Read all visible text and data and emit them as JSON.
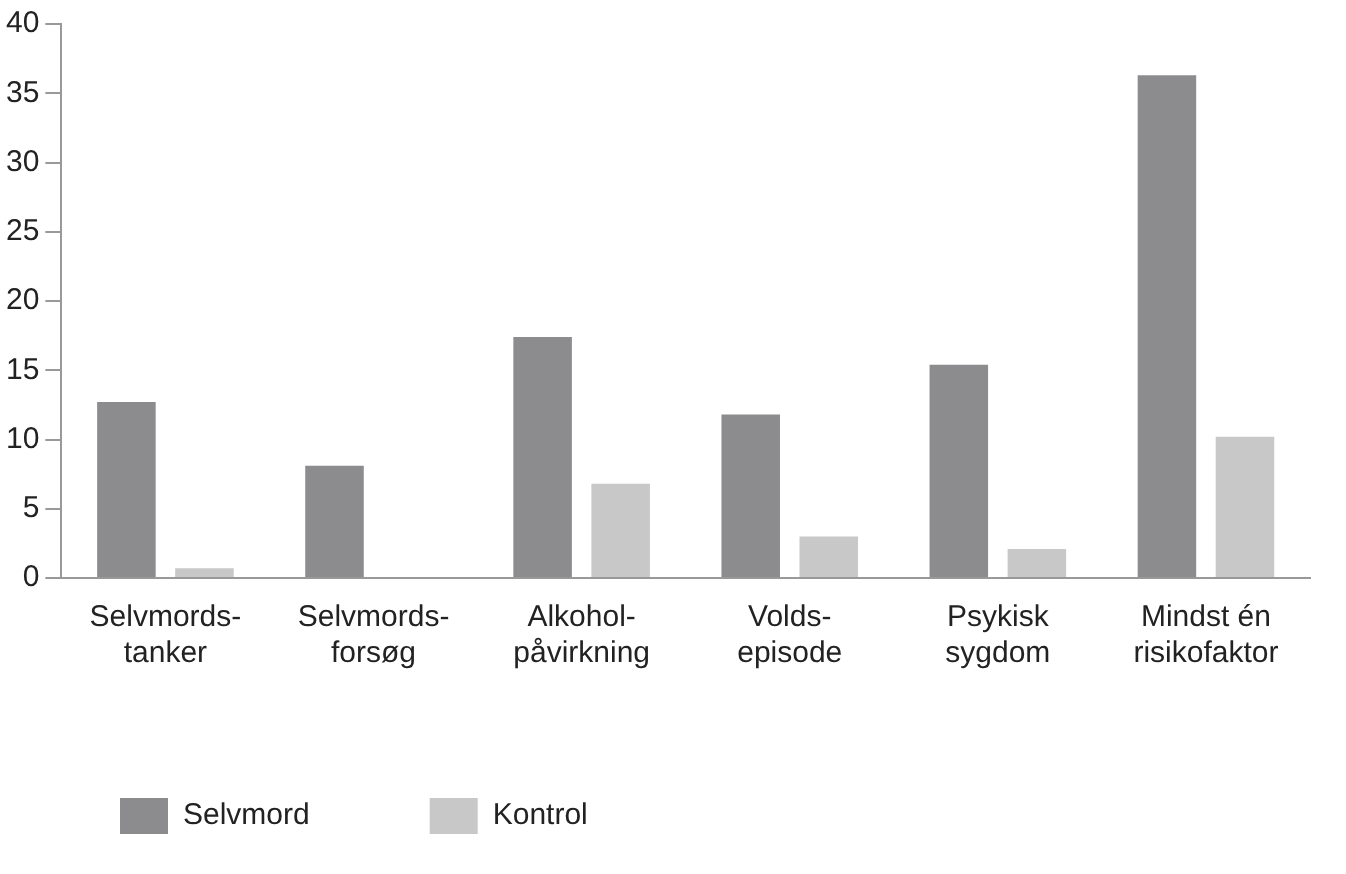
{
  "chart_data": {
    "type": "bar",
    "categories": [
      "Selvmords-\ntanker",
      "Selvmords-\nforsøg",
      "Alkohol-\npåvirkning",
      "Volds-\nepisode",
      "Psykisk\nsygdom",
      "Mindst én\nrisikofaktor"
    ],
    "series": [
      {
        "name": "Selvmord",
        "color": "#8c8c8f",
        "values": [
          12.7,
          8.1,
          17.4,
          11.8,
          15.4,
          36.3
        ]
      },
      {
        "name": "Kontrol",
        "color": "#c8c8c8",
        "values": [
          0.7,
          0,
          6.8,
          3.0,
          2.1,
          10.2
        ]
      }
    ],
    "ylim": [
      0,
      40
    ],
    "yticks": [
      0,
      5,
      10,
      15,
      20,
      25,
      30,
      35,
      40
    ],
    "grid": false,
    "legend": "bottom"
  }
}
